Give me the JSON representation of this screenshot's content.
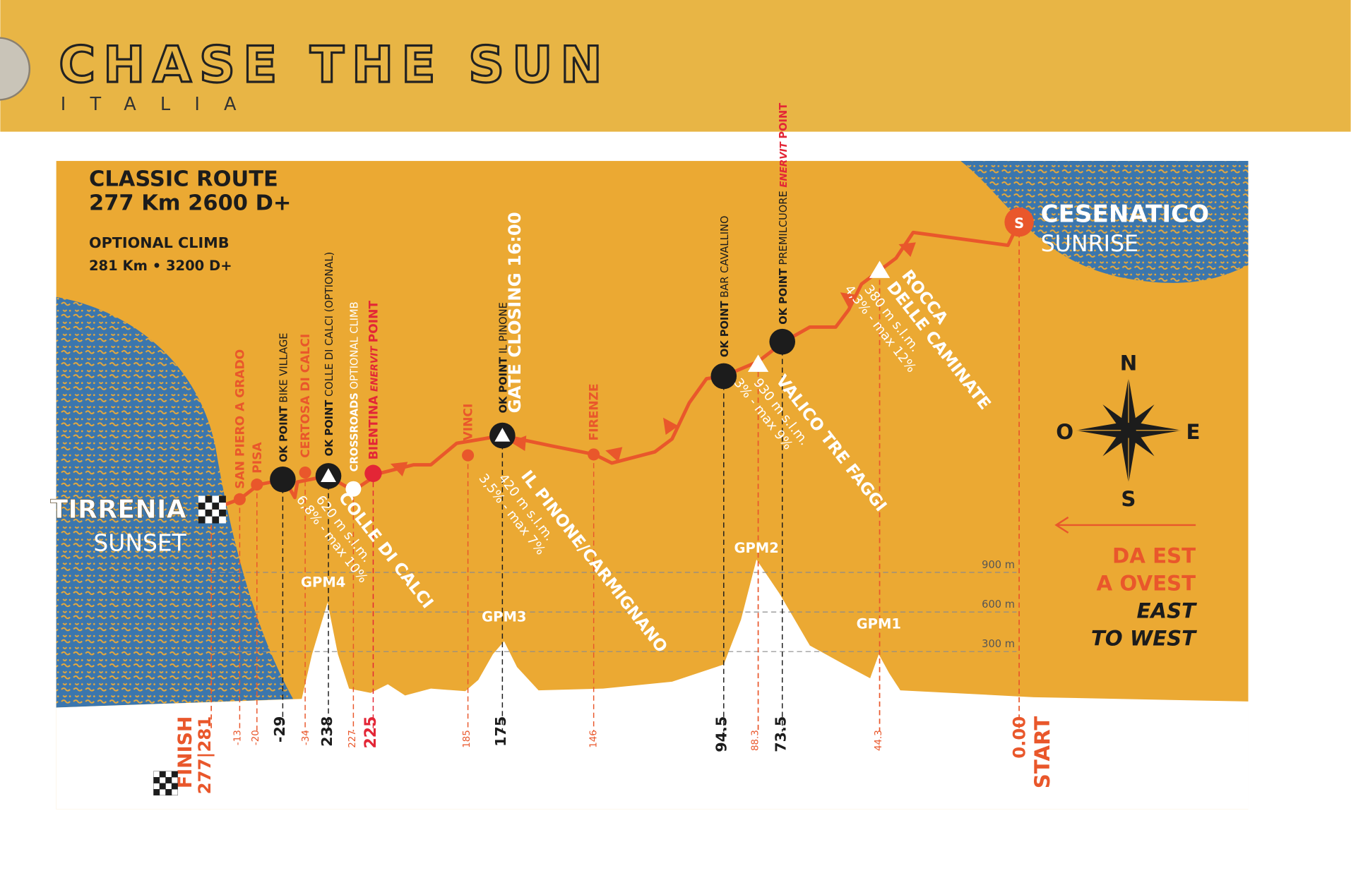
{
  "header": {
    "title": "CHASE THE SUN",
    "subtitle": "ITALIA"
  },
  "route": {
    "title": "CLASSIC ROUTE",
    "distance": "277 Km 2600 D+",
    "optional_title": "OPTIONAL CLIMB",
    "optional_distance": "281 Km • 3200 D+"
  },
  "start": {
    "marker": "S",
    "name": "CESENATICO",
    "time": "SUNRISE"
  },
  "finish": {
    "name": "TIRRENIA",
    "time": "SUNSET"
  },
  "stops": [
    {
      "name": "SAN PIERO A GRADO"
    },
    {
      "name": "PISA"
    },
    {
      "tag": "OK POINT",
      "name": "BIKE VILLAGE"
    },
    {
      "name": "CERTOSA DI CALCI"
    },
    {
      "tag": "OK POINT",
      "name": "COLLE DI CALCI (OPTIONAL)"
    },
    {
      "tag": "CROSSROADS",
      "name": "OPTIONAL CLIMB"
    },
    {
      "name": "BIENTINA",
      "brand": "ENERVIT",
      "suffix": "POINT"
    },
    {
      "name": "VINCI"
    },
    {
      "tag": "OK POINT",
      "name": "IL PINONE",
      "note": "GATE CLOSING 16:00"
    },
    {
      "name": "FIRENZE"
    },
    {
      "tag": "OK POINT",
      "name": "BAR CAVALLINO"
    },
    {
      "tag": "OK POINT",
      "name": "PREMILCUORE",
      "brand": "ENERVIT",
      "suffix": "POINT"
    }
  ],
  "climbs": [
    {
      "name": "COLLE DI CALCI",
      "altitude": "620 m s.l.m.",
      "grade": "6,8% - max 10%",
      "gpm": "GPM4"
    },
    {
      "name": "IL PINONE/CARMIGNANO",
      "altitude": "420 m s.l.m.",
      "grade": "3,5% - max 7%",
      "gpm": "GPM3"
    },
    {
      "name": "VALICO TRE FAGGI",
      "altitude": "930 m s.l.m.",
      "grade": "3% - max 9%",
      "gpm": "GPM2"
    },
    {
      "name": "ROCCA",
      "name2": "DELLE CAMINATE",
      "altitude": "380 m s.l.m.",
      "grade": "4,3% - max 12%",
      "gpm": "GPM1"
    }
  ],
  "elevation_scale": [
    "900 m",
    "600 m",
    "300 m"
  ],
  "km_markers": [
    "FINISH",
    "277|281",
    "-13",
    "-20",
    "-29",
    "-34",
    "238",
    "227",
    "225",
    "185",
    "175",
    "146",
    "94.5",
    "88.3",
    "73.5",
    "44.3",
    "0.00",
    "START"
  ],
  "compass": {
    "north": "N",
    "west": "O",
    "east": "E",
    "south": "S"
  },
  "direction": [
    "DA EST",
    "A OVEST",
    "EAST",
    "TO WEST"
  ]
}
